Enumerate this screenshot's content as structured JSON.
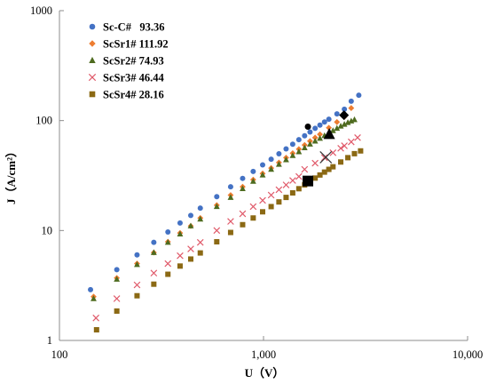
{
  "chart_data": {
    "type": "scatter",
    "title": "",
    "xlabel": "U（V）",
    "ylabel": "J（A/cm²）",
    "xscale": "log",
    "yscale": "log",
    "xlim": [
      100,
      10000
    ],
    "ylim": [
      1,
      1000
    ],
    "xticks": [
      100,
      1000,
      10000
    ],
    "xtick_labels": [
      "100",
      "1,000",
      "10,000"
    ],
    "yticks": [
      1,
      10,
      100,
      1000
    ],
    "ytick_labels": [
      "1",
      "10",
      "100",
      "1000"
    ],
    "grid": false,
    "legend_position": "top-left",
    "series": [
      {
        "name": "Sc-C#   93.36",
        "marker": "circle",
        "color": "#4472c4",
        "x": [
          142,
          191,
          240,
          290,
          340,
          390,
          440,
          490,
          590,
          690,
          790,
          890,
          990,
          1090,
          1190,
          1290,
          1390,
          1490,
          1590,
          1690,
          1790,
          1890,
          1990,
          2090,
          2290,
          2490,
          2690,
          2930
        ],
        "y": [
          2.9,
          4.4,
          6.0,
          7.8,
          9.7,
          11.7,
          13.7,
          16.0,
          20.3,
          25.0,
          29.8,
          34.5,
          39.5,
          44.5,
          49.9,
          55.3,
          61.0,
          67.0,
          72.8,
          78.8,
          85.0,
          91.0,
          97.0,
          103.0,
          115.0,
          127.0,
          150.0,
          170.0
        ]
      },
      {
        "name": "ScSr1# 111.92",
        "marker": "diamond",
        "color": "#ed7d31",
        "x": [
          147,
          191,
          240,
          290,
          340,
          390,
          440,
          490,
          590,
          690,
          790,
          890,
          990,
          1090,
          1190,
          1290,
          1390,
          1490,
          1590,
          1690,
          1790,
          1890,
          2090,
          2290,
          2490,
          2690
        ],
        "y": [
          2.5,
          3.7,
          5.0,
          6.3,
          7.9,
          9.5,
          11.0,
          13.0,
          17.0,
          21.0,
          25.0,
          29.0,
          33.0,
          37.0,
          41.5,
          46.0,
          50.5,
          55.0,
          60.0,
          65.0,
          70.0,
          75.0,
          86.0,
          97.0,
          108.0,
          130.0
        ]
      },
      {
        "name": "ScSr2# 74.93",
        "marker": "triangle",
        "color": "#4e6b1f",
        "x": [
          147,
          191,
          240,
          290,
          340,
          390,
          440,
          490,
          590,
          690,
          790,
          890,
          990,
          1090,
          1190,
          1290,
          1390,
          1490,
          1590,
          1690,
          1790,
          1890,
          1990,
          2090,
          2190,
          2290,
          2390,
          2490,
          2590,
          2690,
          2790
        ],
        "y": [
          2.4,
          3.6,
          4.9,
          6.3,
          7.8,
          9.3,
          11.0,
          12.7,
          16.5,
          20.0,
          24.0,
          28.0,
          32.0,
          36.0,
          40.0,
          44.0,
          48.0,
          52.0,
          56.5,
          61.0,
          65.0,
          69.0,
          73.0,
          77.0,
          81.0,
          85.0,
          89.0,
          92.5,
          96.0,
          99.0,
          102.0
        ]
      },
      {
        "name": "ScSr3# 46.44",
        "marker": "x",
        "color": "#e05a6a",
        "x": [
          151,
          191,
          240,
          290,
          340,
          390,
          440,
          490,
          590,
          690,
          790,
          890,
          990,
          1090,
          1190,
          1290,
          1390,
          1490,
          1590,
          1790,
          1990,
          2190,
          2390,
          2490,
          2690,
          2890
        ],
        "y": [
          1.6,
          2.4,
          3.2,
          4.1,
          5.0,
          5.9,
          6.8,
          7.8,
          10.0,
          12.1,
          14.2,
          16.5,
          18.8,
          21.0,
          23.5,
          26.0,
          28.5,
          31.0,
          36.0,
          41.0,
          46.0,
          51.0,
          56.0,
          59.0,
          64.0,
          70.0
        ]
      },
      {
        "name": "ScSr4# 28.16",
        "marker": "square",
        "color": "#8b6914",
        "x": [
          152,
          191,
          240,
          290,
          340,
          390,
          440,
          490,
          590,
          690,
          790,
          890,
          990,
          1090,
          1190,
          1290,
          1390,
          1490,
          1590,
          1690,
          1790,
          1890,
          1990,
          2090,
          2190,
          2390,
          2590,
          2790,
          2990
        ],
        "y": [
          1.25,
          1.85,
          2.55,
          3.25,
          4.0,
          4.75,
          5.5,
          6.25,
          7.9,
          9.6,
          11.3,
          13.0,
          14.8,
          16.5,
          18.2,
          20.0,
          22.0,
          24.0,
          26.0,
          28.0,
          30.0,
          32.0,
          34.0,
          36.0,
          38.0,
          42.0,
          46.0,
          50.0,
          53.0
        ]
      }
    ],
    "highlighted_points": [
      {
        "series": "Sc-C#   93.36",
        "marker": "circle",
        "x": 1650,
        "y": 88
      },
      {
        "series": "ScSr1# 111.92",
        "marker": "diamond",
        "x": 2480,
        "y": 112
      },
      {
        "series": "ScSr2# 74.93",
        "marker": "triangle",
        "x": 2100,
        "y": 75
      },
      {
        "series": "ScSr3# 46.44",
        "marker": "x",
        "x": 2020,
        "y": 46.4
      },
      {
        "series": "ScSr4# 28.16",
        "marker": "square",
        "x": 1650,
        "y": 28.2
      }
    ]
  }
}
